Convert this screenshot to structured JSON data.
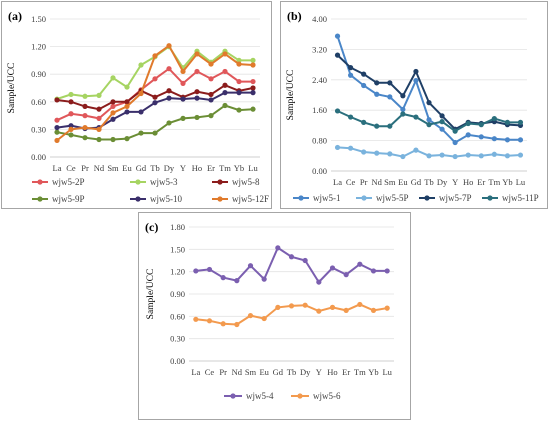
{
  "chart_data": [
    {
      "panel_label": "(a)",
      "type": "line",
      "ylabel": "Sample/UCC",
      "ylim": [
        0,
        1.5
      ],
      "yticks": [
        "0.00",
        "0.30",
        "0.60",
        "0.90",
        "1.20",
        "1.50"
      ],
      "categories": [
        "La",
        "Ce",
        "Pr",
        "Nd",
        "Sm",
        "Eu",
        "Gd",
        "Tb",
        "Dy",
        "Y",
        "Ho",
        "Er",
        "Tm",
        "Yb",
        "Lu"
      ],
      "legend_position": "bottom",
      "series": [
        {
          "name": "wjw5-2P",
          "color": "#e0575a",
          "values": [
            0.4,
            0.47,
            0.45,
            0.42,
            0.55,
            0.6,
            0.73,
            0.85,
            0.96,
            0.8,
            0.93,
            0.85,
            0.93,
            0.82,
            0.82
          ]
        },
        {
          "name": "wjw5-3",
          "color": "#a6d462",
          "values": [
            0.63,
            0.68,
            0.66,
            0.67,
            0.86,
            0.76,
            1.0,
            1.09,
            1.2,
            0.97,
            1.15,
            1.03,
            1.15,
            1.05,
            1.05
          ]
        },
        {
          "name": "wjw5-8",
          "color": "#8b1c1c",
          "values": [
            0.62,
            0.6,
            0.55,
            0.52,
            0.6,
            0.6,
            0.72,
            0.65,
            0.72,
            0.65,
            0.71,
            0.68,
            0.78,
            0.72,
            0.75
          ]
        },
        {
          "name": "wjw5-9P",
          "color": "#6b8e35",
          "values": [
            0.27,
            0.24,
            0.21,
            0.19,
            0.19,
            0.2,
            0.26,
            0.26,
            0.37,
            0.42,
            0.43,
            0.45,
            0.56,
            0.51,
            0.52
          ]
        },
        {
          "name": "wjw5-10",
          "color": "#3a2f6b",
          "values": [
            0.32,
            0.34,
            0.31,
            0.32,
            0.41,
            0.49,
            0.49,
            0.59,
            0.64,
            0.63,
            0.64,
            0.62,
            0.7,
            0.7,
            0.7
          ]
        },
        {
          "name": "wjw5-12F",
          "color": "#e07a2c",
          "values": [
            0.18,
            0.3,
            0.32,
            0.3,
            0.48,
            0.55,
            0.69,
            1.1,
            1.21,
            0.93,
            1.12,
            1.01,
            1.12,
            1.01,
            1.0
          ]
        }
      ]
    },
    {
      "panel_label": "(b)",
      "type": "line",
      "ylabel": "Sample/UCC",
      "ylim": [
        0,
        4.0
      ],
      "yticks": [
        "0.00",
        "0.80",
        "1.60",
        "2.40",
        "3.20",
        "4.00"
      ],
      "categories": [
        "La",
        "Ce",
        "Pr",
        "Nd",
        "Sm",
        "Eu",
        "Gd",
        "Tb",
        "Dy",
        "Y",
        "Ho",
        "Er",
        "Tm",
        "Yb",
        "Lu"
      ],
      "legend_position": "bottom",
      "series": [
        {
          "name": "wjw5-1",
          "color": "#4a86c8",
          "values": [
            3.55,
            2.52,
            2.25,
            2.02,
            1.95,
            1.62,
            2.38,
            1.35,
            1.1,
            0.75,
            0.95,
            0.9,
            0.85,
            0.82,
            0.82
          ]
        },
        {
          "name": "wjw5-5P",
          "color": "#7ab3dd",
          "values": [
            0.62,
            0.6,
            0.5,
            0.47,
            0.45,
            0.38,
            0.55,
            0.4,
            0.42,
            0.38,
            0.42,
            0.4,
            0.44,
            0.4,
            0.42
          ]
        },
        {
          "name": "wjw5-7P",
          "color": "#1f3f66",
          "values": [
            3.05,
            2.72,
            2.55,
            2.32,
            2.32,
            1.98,
            2.62,
            1.8,
            1.45,
            1.1,
            1.28,
            1.25,
            1.3,
            1.22,
            1.2
          ]
        },
        {
          "name": "wjw5-11P",
          "color": "#2a6f7d",
          "values": [
            1.58,
            1.42,
            1.28,
            1.18,
            1.18,
            1.5,
            1.42,
            1.22,
            1.3,
            1.05,
            1.25,
            1.22,
            1.38,
            1.28,
            1.28
          ]
        }
      ]
    },
    {
      "panel_label": "(c)",
      "type": "line",
      "ylabel": "Sample/UCC",
      "ylim": [
        0,
        1.8
      ],
      "yticks": [
        "0.00",
        "0.30",
        "0.60",
        "0.90",
        "1.20",
        "1.50",
        "1.80"
      ],
      "categories": [
        "La",
        "Ce",
        "Pr",
        "Nd",
        "Sm",
        "Eu",
        "Gd",
        "Tb",
        "Dy",
        "Y",
        "Ho",
        "Er",
        "Tm",
        "Yb",
        "Lu"
      ],
      "legend_position": "bottom",
      "series": [
        {
          "name": "wjw5-4",
          "color": "#7b5fb0",
          "values": [
            1.21,
            1.23,
            1.12,
            1.08,
            1.28,
            1.1,
            1.52,
            1.4,
            1.35,
            1.06,
            1.25,
            1.16,
            1.3,
            1.21,
            1.21
          ]
        },
        {
          "name": "wjw5-6",
          "color": "#f39a4e",
          "values": [
            0.56,
            0.54,
            0.5,
            0.49,
            0.61,
            0.57,
            0.72,
            0.74,
            0.75,
            0.67,
            0.72,
            0.68,
            0.76,
            0.68,
            0.71
          ]
        }
      ]
    }
  ]
}
